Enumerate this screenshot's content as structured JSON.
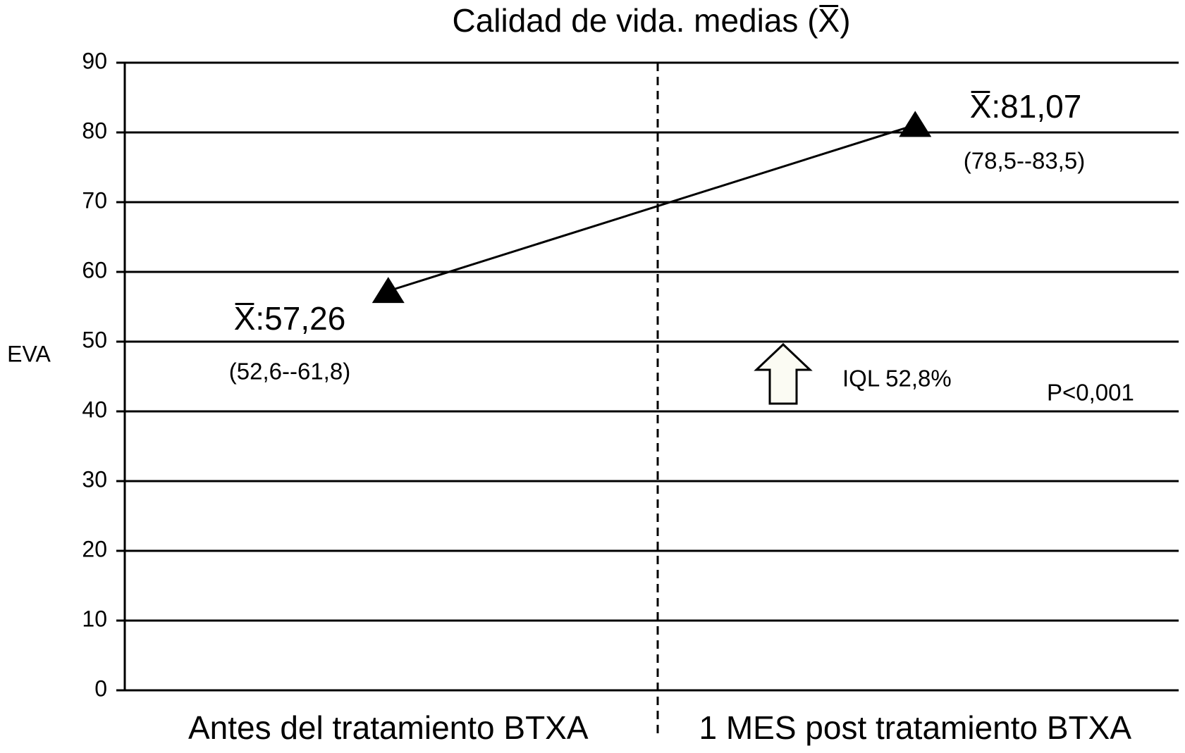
{
  "chart_data": {
    "type": "line",
    "title": "Calidad de vida. medias (X̅)",
    "ylabel": "EVA",
    "categories": [
      "Antes del tratamiento BTXA",
      "1 MES post tratamiento BTXA"
    ],
    "series": [
      {
        "name": "Calidad de vida",
        "color": "#000000",
        "values": [
          57.26,
          81.07
        ],
        "value_labels": [
          "X̅:57,26",
          "X̅:81,07"
        ],
        "intervals": [
          "(52,6--61,8)",
          "(78,5--83,5)"
        ]
      }
    ],
    "ylim": [
      0,
      90
    ],
    "yticks": [
      0,
      10,
      20,
      30,
      40,
      50,
      60,
      70,
      80,
      90
    ],
    "grid": true,
    "annotations": [
      "IQL 52,8%",
      "P<0,001"
    ]
  }
}
